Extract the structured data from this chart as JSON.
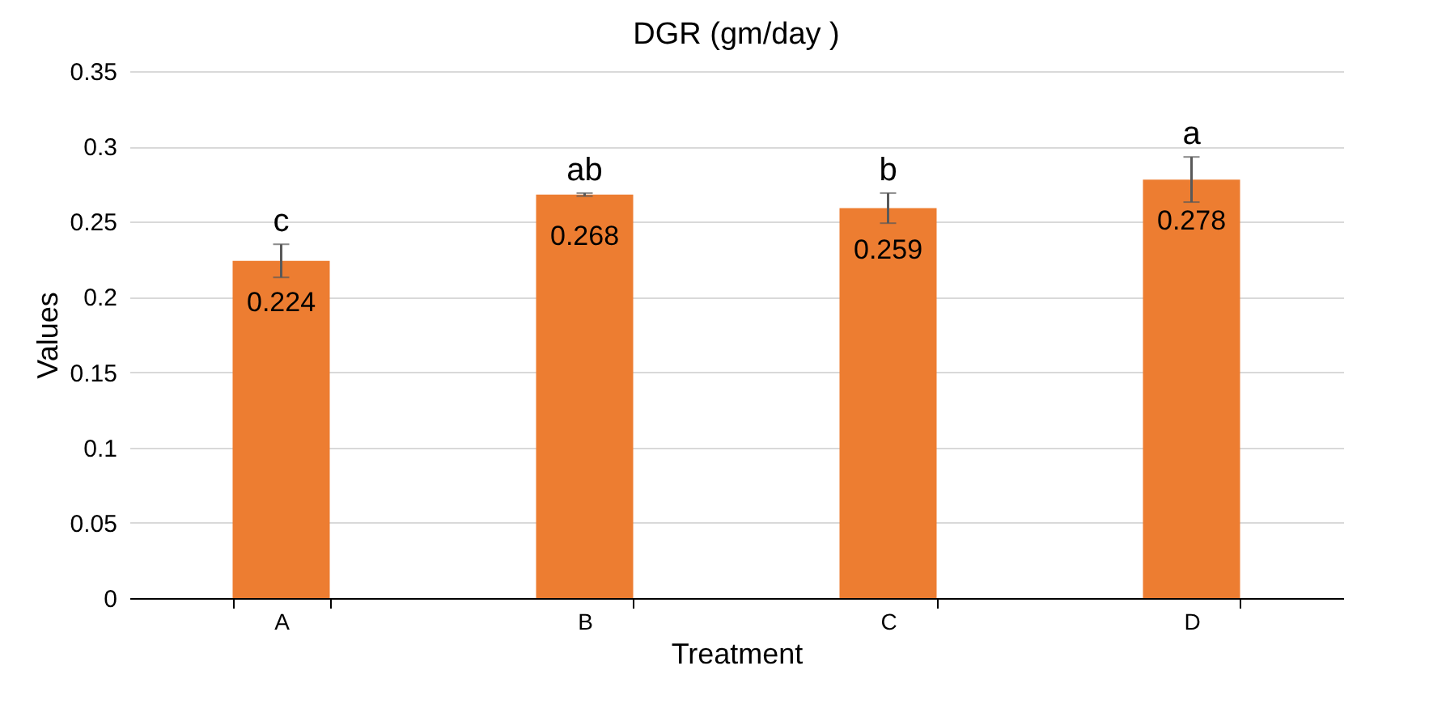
{
  "chart_data": {
    "type": "bar",
    "title": "DGR (gm/day )",
    "xlabel": "Treatment",
    "ylabel": "Values",
    "categories": [
      "A",
      "B",
      "C",
      "D"
    ],
    "values": [
      0.224,
      0.268,
      0.259,
      0.278
    ],
    "errors": [
      0.011,
      0.001,
      0.01,
      0.015
    ],
    "color": "#ed7d31",
    "data_labels": true,
    "ylim": [
      0,
      0.35
    ],
    "yticks": [
      0,
      0.05,
      0.1,
      0.15,
      0.2,
      0.25,
      0.3,
      0.35
    ],
    "grid": "y",
    "annotations": [
      {
        "text": "c",
        "x": "A",
        "y": 0.235
      },
      {
        "text": "ab",
        "x": "B",
        "y": 0.269
      },
      {
        "text": "b",
        "x": "C",
        "y": 0.269
      },
      {
        "text": "a",
        "x": "D",
        "y": 0.293
      }
    ]
  }
}
